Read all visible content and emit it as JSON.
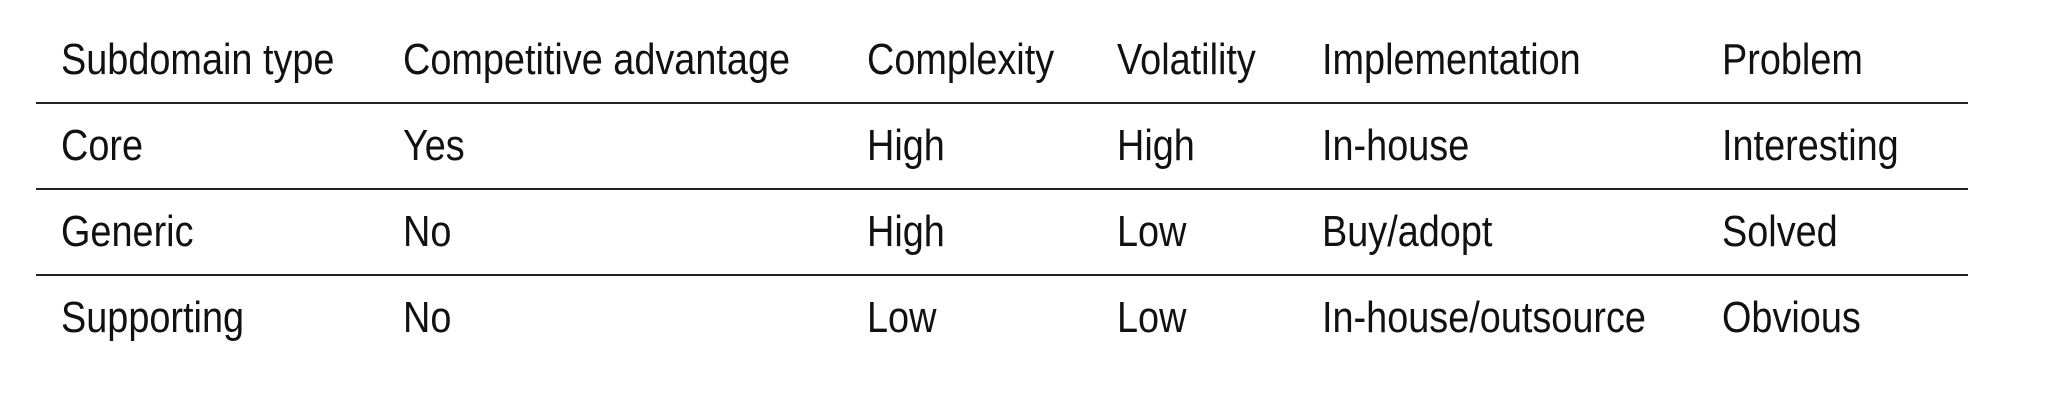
{
  "table": {
    "headers": [
      "Subdomain type",
      "Competitive advantage",
      "Complexity",
      "Volatility",
      "Implementation",
      "Problem"
    ],
    "rows": [
      [
        "Core",
        "Yes",
        "High",
        "High",
        "In-house",
        "Interesting"
      ],
      [
        "Generic",
        "No",
        "High",
        "Low",
        "Buy/adopt",
        "Solved"
      ],
      [
        "Supporting",
        "No",
        "Low",
        "Low",
        "In-house/outsource",
        "Obvious"
      ]
    ]
  }
}
